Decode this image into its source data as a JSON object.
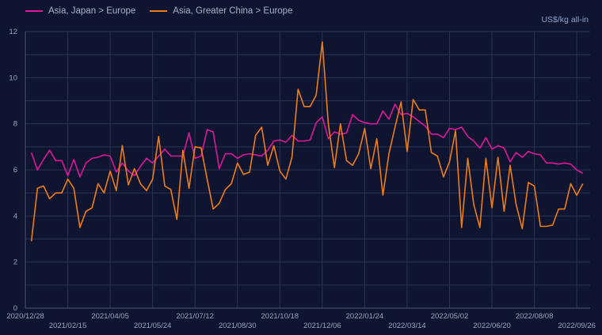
{
  "chart_data": {
    "type": "line",
    "title": "",
    "xlabel": "",
    "ylabel": "US$/kg all-in",
    "ylim": [
      0,
      12
    ],
    "yticks": [
      0,
      2,
      4,
      6,
      8,
      10,
      12
    ],
    "grid": true,
    "legend_position": "top-left",
    "xtick_labels": [
      "2020/12/28",
      "2021/02/15",
      "2021/04/05",
      "2021/05/24",
      "2021/07/12",
      "2021/08/30",
      "2021/10/18",
      "2021/12/06",
      "2022/01/24",
      "2022/03/14",
      "2022/05/02",
      "2022/06/20",
      "2022/08/08",
      "2022/09/26"
    ],
    "x_start": "2020/12/28",
    "x_step": "weekly",
    "series": [
      {
        "name": "Asia, Japan > Europe",
        "color": "#e0169a",
        "values": [
          6.75,
          6.0,
          6.45,
          6.85,
          6.4,
          6.4,
          5.75,
          6.45,
          5.7,
          6.3,
          6.5,
          6.55,
          6.65,
          6.6,
          5.9,
          6.3,
          5.95,
          5.75,
          6.15,
          6.5,
          6.3,
          6.6,
          6.9,
          6.6,
          6.6,
          6.6,
          7.6,
          6.5,
          6.6,
          7.75,
          7.65,
          6.05,
          6.7,
          6.7,
          6.5,
          6.65,
          6.7,
          6.65,
          6.6,
          6.85,
          7.25,
          7.3,
          7.2,
          7.5,
          7.25,
          7.25,
          7.3,
          8.05,
          8.3,
          7.35,
          7.65,
          7.55,
          7.6,
          8.4,
          8.15,
          8.05,
          8.0,
          8.0,
          8.55,
          8.2,
          8.85,
          8.4,
          8.45,
          8.3,
          8.1,
          7.9,
          7.55,
          7.55,
          7.4,
          7.8,
          7.75,
          7.85,
          7.45,
          7.25,
          6.95,
          7.4,
          6.9,
          7.05,
          6.95,
          6.35,
          6.75,
          6.55,
          6.8,
          6.7,
          6.65,
          6.3,
          6.3,
          6.25,
          6.3,
          6.25,
          6.0,
          5.85
        ]
      },
      {
        "name": "Asia, Greater China > Europe",
        "color": "#f07d12",
        "values": [
          2.9,
          5.2,
          5.3,
          4.75,
          5.0,
          5.0,
          5.6,
          5.2,
          3.5,
          4.2,
          4.35,
          5.4,
          5.0,
          5.95,
          5.1,
          7.05,
          5.35,
          6.05,
          5.4,
          5.1,
          5.6,
          7.45,
          5.3,
          5.15,
          3.85,
          6.85,
          5.2,
          7.0,
          6.95,
          5.6,
          4.3,
          4.55,
          5.15,
          5.4,
          6.3,
          5.8,
          5.9,
          7.5,
          7.85,
          6.2,
          7.05,
          5.95,
          5.6,
          6.55,
          9.5,
          8.75,
          8.75,
          9.25,
          11.55,
          8.0,
          6.1,
          8.0,
          6.4,
          6.2,
          6.7,
          7.8,
          6.05,
          7.35,
          4.9,
          6.7,
          7.85,
          8.95,
          6.8,
          9.05,
          8.6,
          8.6,
          6.75,
          6.6,
          5.7,
          6.35,
          7.7,
          3.5,
          6.5,
          4.5,
          3.5,
          6.5,
          4.35,
          6.55,
          4.2,
          6.2,
          4.5,
          3.45,
          5.45,
          5.3,
          3.55,
          3.55,
          3.6,
          4.3,
          4.3,
          5.4,
          4.9,
          5.4
        ]
      }
    ]
  },
  "legend": {
    "items": [
      {
        "label": "Asia, Japan > Europe",
        "color": "#e0169a"
      },
      {
        "label": "Asia, Greater China > Europe",
        "color": "#f07d12"
      }
    ]
  },
  "unit_label": "US$/kg all-in"
}
